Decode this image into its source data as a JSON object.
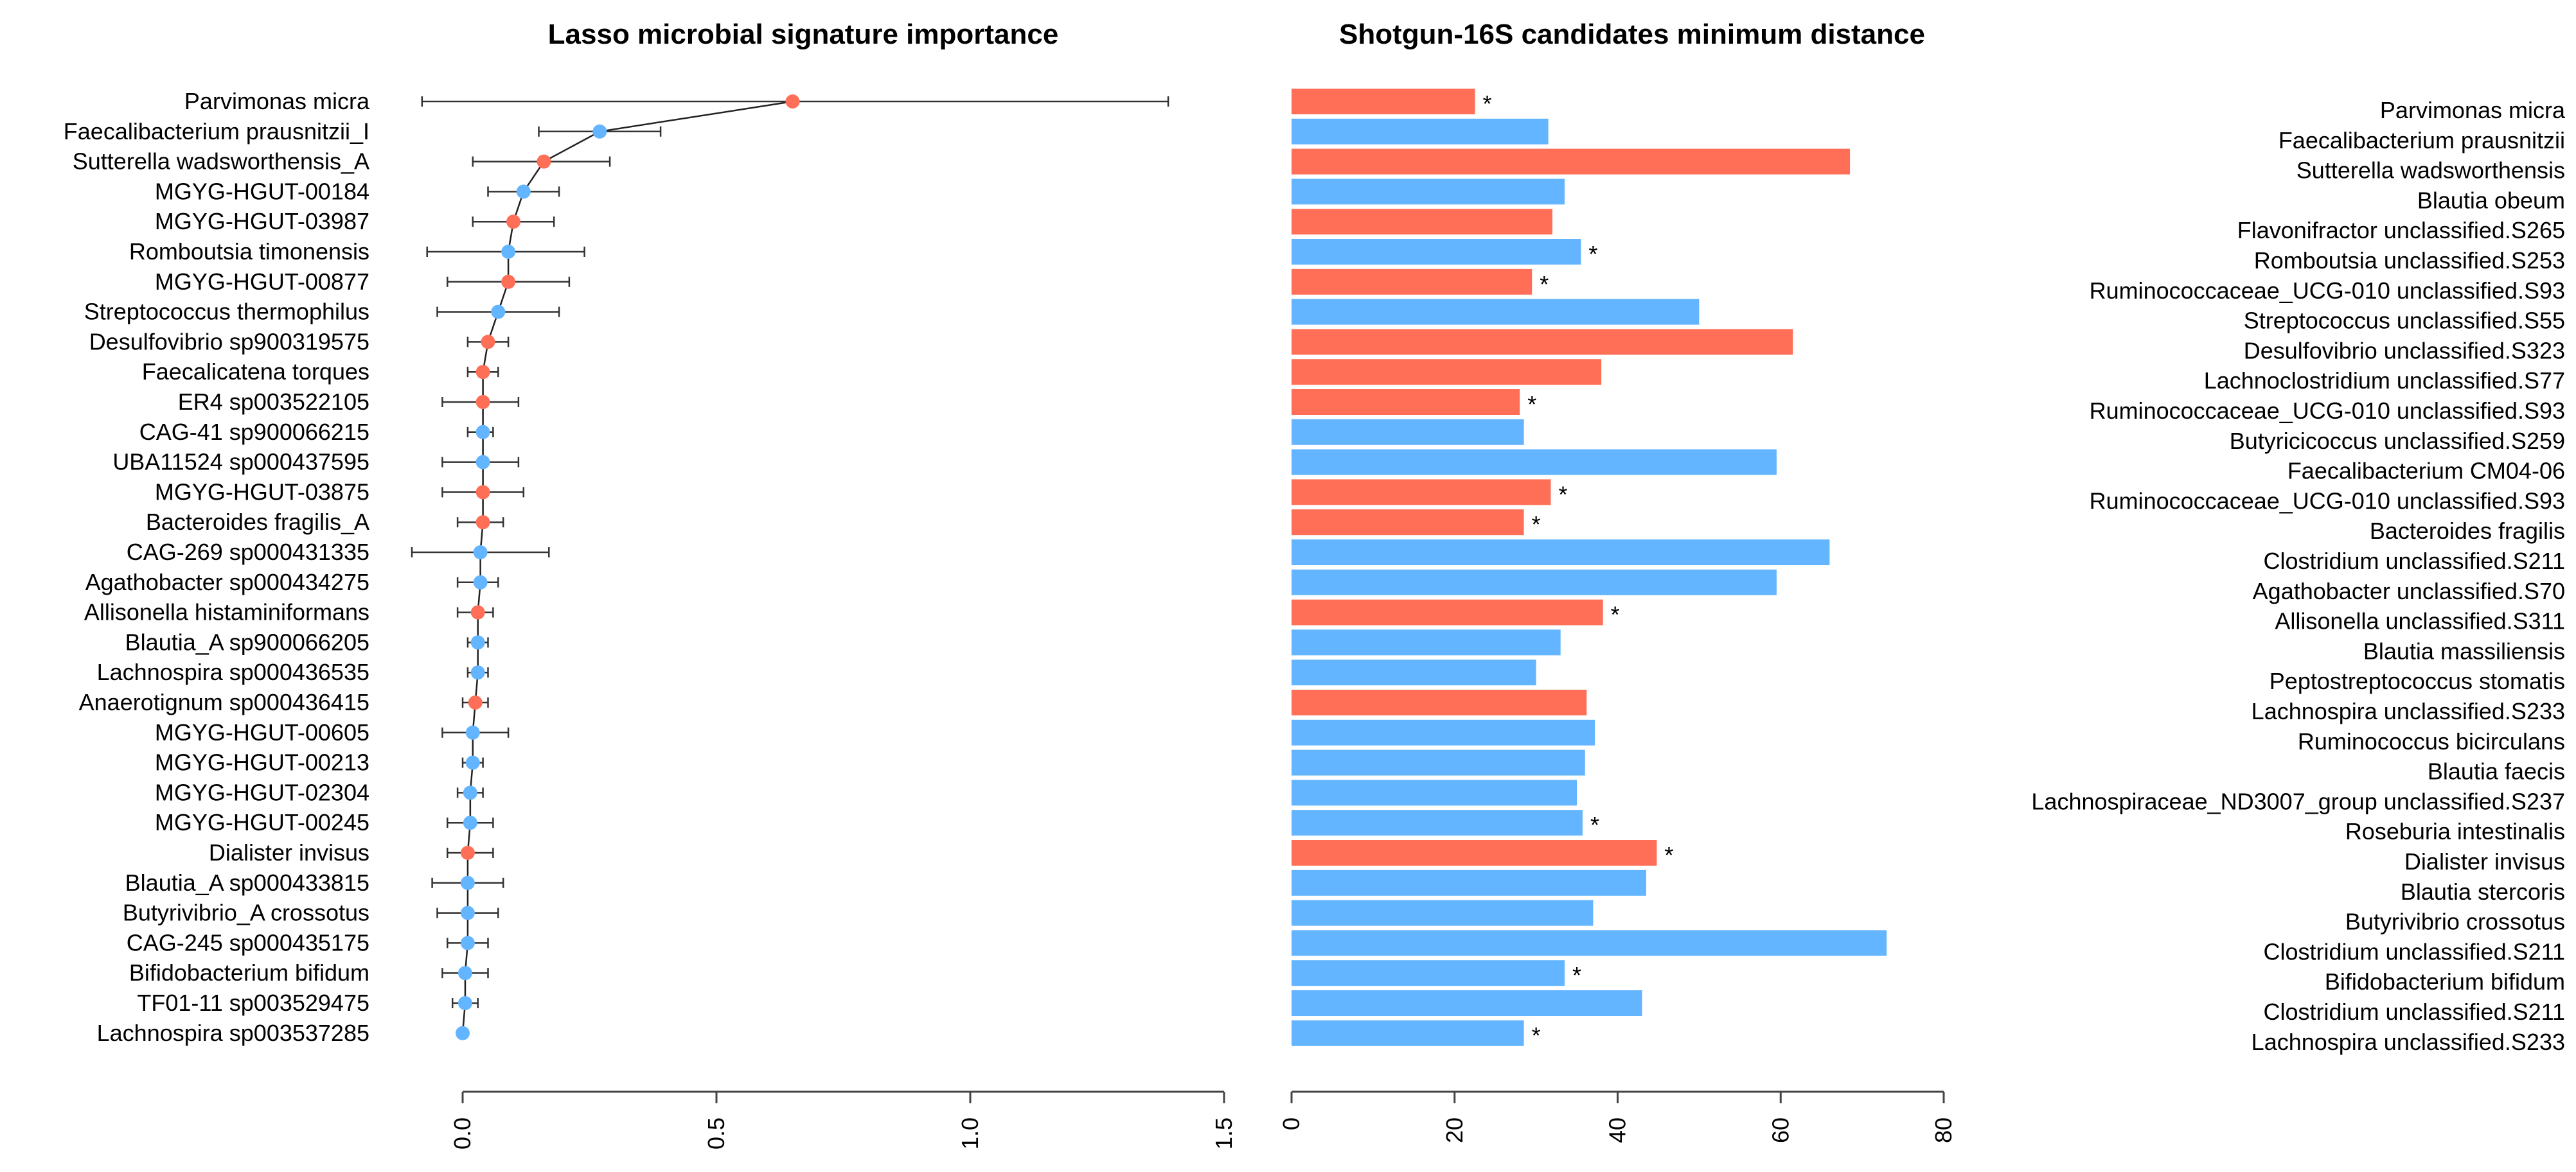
{
  "colors": {
    "red": "#FF6F57",
    "blue": "#64B5FF",
    "axis": "#444444"
  },
  "chart_data": [
    {
      "type": "scatter",
      "title": "Lasso microbial signature importance",
      "xlabel": "",
      "ylabel": "",
      "xlim": [
        0,
        1.5
      ],
      "xticks": [
        "0.0",
        "0.5",
        "1.0",
        "1.5"
      ],
      "xtick_values": [
        0,
        0.5,
        1.0,
        1.5
      ],
      "points": [
        {
          "name": "Parvimonas micra",
          "value": 0.65,
          "lo": -0.08,
          "hi": 1.39,
          "color": "red"
        },
        {
          "name": "Faecalibacterium prausnitzii_I",
          "value": 0.27,
          "lo": 0.15,
          "hi": 0.39,
          "color": "blue"
        },
        {
          "name": "Sutterella wadsworthensis_A",
          "value": 0.16,
          "lo": 0.02,
          "hi": 0.29,
          "color": "red"
        },
        {
          "name": "MGYG-HGUT-00184",
          "value": 0.12,
          "lo": 0.05,
          "hi": 0.19,
          "color": "blue"
        },
        {
          "name": "MGYG-HGUT-03987",
          "value": 0.1,
          "lo": 0.02,
          "hi": 0.18,
          "color": "red"
        },
        {
          "name": "Romboutsia timonensis",
          "value": 0.09,
          "lo": -0.07,
          "hi": 0.24,
          "color": "blue"
        },
        {
          "name": "MGYG-HGUT-00877",
          "value": 0.09,
          "lo": -0.03,
          "hi": 0.21,
          "color": "red"
        },
        {
          "name": "Streptococcus thermophilus",
          "value": 0.07,
          "lo": -0.05,
          "hi": 0.19,
          "color": "blue"
        },
        {
          "name": "Desulfovibrio sp900319575",
          "value": 0.05,
          "lo": 0.01,
          "hi": 0.09,
          "color": "red"
        },
        {
          "name": "Faecalicatena torques",
          "value": 0.04,
          "lo": 0.01,
          "hi": 0.07,
          "color": "red"
        },
        {
          "name": "ER4 sp003522105",
          "value": 0.04,
          "lo": -0.04,
          "hi": 0.11,
          "color": "red"
        },
        {
          "name": "CAG-41 sp900066215",
          "value": 0.04,
          "lo": 0.01,
          "hi": 0.06,
          "color": "blue"
        },
        {
          "name": "UBA11524 sp000437595",
          "value": 0.04,
          "lo": -0.04,
          "hi": 0.11,
          "color": "blue"
        },
        {
          "name": "MGYG-HGUT-03875",
          "value": 0.04,
          "lo": -0.04,
          "hi": 0.12,
          "color": "red"
        },
        {
          "name": "Bacteroides fragilis_A",
          "value": 0.04,
          "lo": -0.01,
          "hi": 0.08,
          "color": "red"
        },
        {
          "name": "CAG-269 sp000431335",
          "value": 0.035,
          "lo": -0.1,
          "hi": 0.17,
          "color": "blue"
        },
        {
          "name": "Agathobacter sp000434275",
          "value": 0.035,
          "lo": -0.01,
          "hi": 0.07,
          "color": "blue"
        },
        {
          "name": "Allisonella histaminiformans",
          "value": 0.03,
          "lo": -0.01,
          "hi": 0.06,
          "color": "red"
        },
        {
          "name": "Blautia_A sp900066205",
          "value": 0.03,
          "lo": 0.01,
          "hi": 0.05,
          "color": "blue"
        },
        {
          "name": "Lachnospira sp000436535",
          "value": 0.03,
          "lo": 0.01,
          "hi": 0.05,
          "color": "blue"
        },
        {
          "name": "Anaerotignum sp000436415",
          "value": 0.025,
          "lo": 0.0,
          "hi": 0.05,
          "color": "red"
        },
        {
          "name": "MGYG-HGUT-00605",
          "value": 0.02,
          "lo": -0.04,
          "hi": 0.09,
          "color": "blue"
        },
        {
          "name": "MGYG-HGUT-00213",
          "value": 0.02,
          "lo": 0.0,
          "hi": 0.04,
          "color": "blue"
        },
        {
          "name": "MGYG-HGUT-02304",
          "value": 0.015,
          "lo": -0.01,
          "hi": 0.04,
          "color": "blue"
        },
        {
          "name": "MGYG-HGUT-00245",
          "value": 0.015,
          "lo": -0.03,
          "hi": 0.06,
          "color": "blue"
        },
        {
          "name": "Dialister invisus",
          "value": 0.01,
          "lo": -0.03,
          "hi": 0.06,
          "color": "red"
        },
        {
          "name": "Blautia_A sp000433815",
          "value": 0.01,
          "lo": -0.06,
          "hi": 0.08,
          "color": "blue"
        },
        {
          "name": "Butyrivibrio_A crossotus",
          "value": 0.01,
          "lo": -0.05,
          "hi": 0.07,
          "color": "blue"
        },
        {
          "name": "CAG-245 sp000435175",
          "value": 0.01,
          "lo": -0.03,
          "hi": 0.05,
          "color": "blue"
        },
        {
          "name": "Bifidobacterium bifidum",
          "value": 0.005,
          "lo": -0.04,
          "hi": 0.05,
          "color": "blue"
        },
        {
          "name": "TF01-11 sp003529475",
          "value": 0.005,
          "lo": -0.02,
          "hi": 0.03,
          "color": "blue"
        },
        {
          "name": "Lachnospira sp003537285",
          "value": 0.0,
          "lo": -0.005,
          "hi": 0.005,
          "color": "blue"
        }
      ]
    },
    {
      "type": "bar",
      "orientation": "horizontal",
      "title": "Shotgun-16S candidates minimum distance",
      "xlabel": "",
      "ylabel": "",
      "xlim": [
        0,
        80
      ],
      "xticks": [
        "0",
        "20",
        "40",
        "60",
        "80"
      ],
      "xtick_values": [
        0,
        20,
        40,
        60,
        80
      ],
      "bars": [
        {
          "label": "Parvimonas micra",
          "value": 22.5,
          "color": "red",
          "star": true
        },
        {
          "label": "Faecalibacterium prausnitzii",
          "value": 31.5,
          "color": "blue",
          "star": false
        },
        {
          "label": "Sutterella wadsworthensis",
          "value": 68.5,
          "color": "red",
          "star": false
        },
        {
          "label": "Blautia obeum",
          "value": 33.5,
          "color": "blue",
          "star": false
        },
        {
          "label": "Flavonifractor unclassified.S265",
          "value": 32.0,
          "color": "red",
          "star": false
        },
        {
          "label": "Romboutsia unclassified.S253",
          "value": 35.5,
          "color": "blue",
          "star": true
        },
        {
          "label": "Ruminococcaceae_UCG-010 unclassified.S93",
          "value": 29.5,
          "color": "red",
          "star": true
        },
        {
          "label": "Streptococcus unclassified.S55",
          "value": 50.0,
          "color": "blue",
          "star": false
        },
        {
          "label": "Desulfovibrio unclassified.S323",
          "value": 61.5,
          "color": "red",
          "star": false
        },
        {
          "label": "Lachnoclostridium unclassified.S77",
          "value": 38.0,
          "color": "red",
          "star": false
        },
        {
          "label": "Ruminococcaceae_UCG-010 unclassified.S93",
          "value": 28.0,
          "color": "red",
          "star": true
        },
        {
          "label": "Butyricicoccus unclassified.S259",
          "value": 28.5,
          "color": "blue",
          "star": false
        },
        {
          "label": "Faecalibacterium CM04-06",
          "value": 59.5,
          "color": "blue",
          "star": false
        },
        {
          "label": "Ruminococcaceae_UCG-010 unclassified.S93",
          "value": 31.8,
          "color": "red",
          "star": true
        },
        {
          "label": "Bacteroides fragilis",
          "value": 28.5,
          "color": "red",
          "star": true
        },
        {
          "label": "Clostridium unclassified.S211",
          "value": 66.0,
          "color": "blue",
          "star": false
        },
        {
          "label": "Agathobacter unclassified.S70",
          "value": 59.5,
          "color": "blue",
          "star": false
        },
        {
          "label": "Allisonella unclassified.S311",
          "value": 38.2,
          "color": "red",
          "star": true
        },
        {
          "label": "Blautia massiliensis",
          "value": 33.0,
          "color": "blue",
          "star": false
        },
        {
          "label": "Peptostreptococcus stomatis",
          "value": 30.0,
          "color": "blue",
          "star": false
        },
        {
          "label": "Lachnospira unclassified.S233",
          "value": 36.2,
          "color": "red",
          "star": false
        },
        {
          "label": "Ruminococcus bicirculans",
          "value": 37.2,
          "color": "blue",
          "star": false
        },
        {
          "label": "Blautia faecis",
          "value": 36.0,
          "color": "blue",
          "star": false
        },
        {
          "label": "Lachnospiraceae_ND3007_group unclassified.S237",
          "value": 35.0,
          "color": "blue",
          "star": false
        },
        {
          "label": "Roseburia intestinalis",
          "value": 35.7,
          "color": "blue",
          "star": true
        },
        {
          "label": "Dialister invisus",
          "value": 44.8,
          "color": "red",
          "star": true
        },
        {
          "label": "Blautia stercoris",
          "value": 43.5,
          "color": "blue",
          "star": false
        },
        {
          "label": "Butyrivibrio crossotus",
          "value": 37.0,
          "color": "blue",
          "star": false
        },
        {
          "label": "Clostridium unclassified.S211",
          "value": 73.0,
          "color": "blue",
          "star": false
        },
        {
          "label": "Bifidobacterium bifidum",
          "value": 33.5,
          "color": "blue",
          "star": true
        },
        {
          "label": "Clostridium unclassified.S211",
          "value": 43.0,
          "color": "blue",
          "star": false
        },
        {
          "label": "Lachnospira unclassified.S233",
          "value": 28.5,
          "color": "blue",
          "star": true
        }
      ],
      "star_label": "*"
    }
  ]
}
